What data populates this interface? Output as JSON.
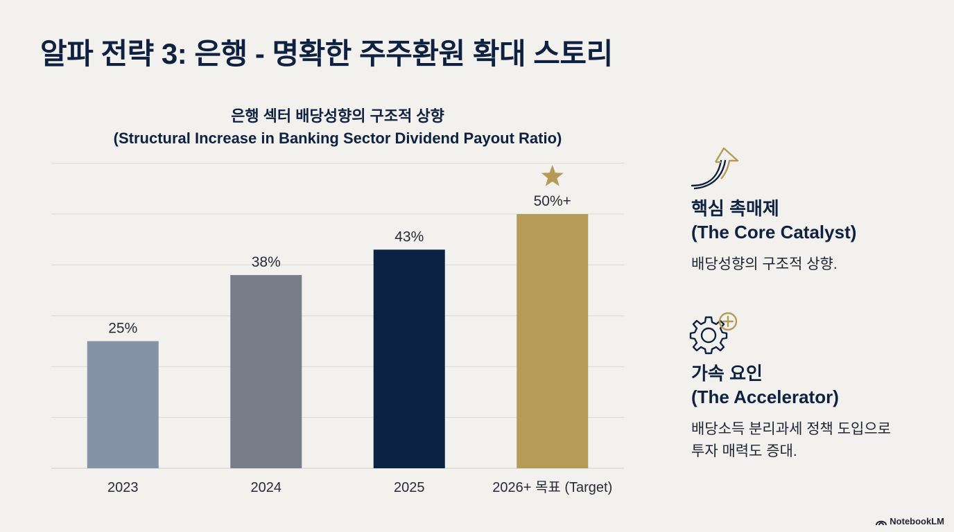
{
  "title": "알파 전략 3: 은행 - 명확한 주주환원 확대 스토리",
  "chart_data": {
    "type": "bar",
    "title": "은행 섹터 배당성향의 구조적 상향",
    "subtitle": "(Structural Increase in Banking Sector Dividend Payout Ratio)",
    "categories": [
      "2023",
      "2024",
      "2025",
      "2026+ 목표 (Target)"
    ],
    "values": [
      25,
      38,
      43,
      50
    ],
    "data_labels": [
      "25%",
      "38%",
      "43%",
      "50%+"
    ],
    "colors": [
      "#8693a6",
      "#787d8a",
      "#0b2244",
      "#b59a58"
    ],
    "ylim": [
      0,
      60
    ],
    "grid": true,
    "highlight_marker": "star"
  },
  "catalyst": {
    "title_kr": "핵심 촉매제",
    "title_en": "(The Core Catalyst)",
    "desc": "배당성향의 구조적 상향."
  },
  "accelerator": {
    "title_kr": "가속 요인",
    "title_en": "(The Accelerator)",
    "desc_line1": "배당소득 분리과세 정책 도입으로",
    "desc_line2": "투자 매력도 증대."
  },
  "brand": "NotebookLM",
  "colors": {
    "navy": "#0f2140",
    "gold": "#b59a58",
    "background": "#f2f1ed"
  }
}
